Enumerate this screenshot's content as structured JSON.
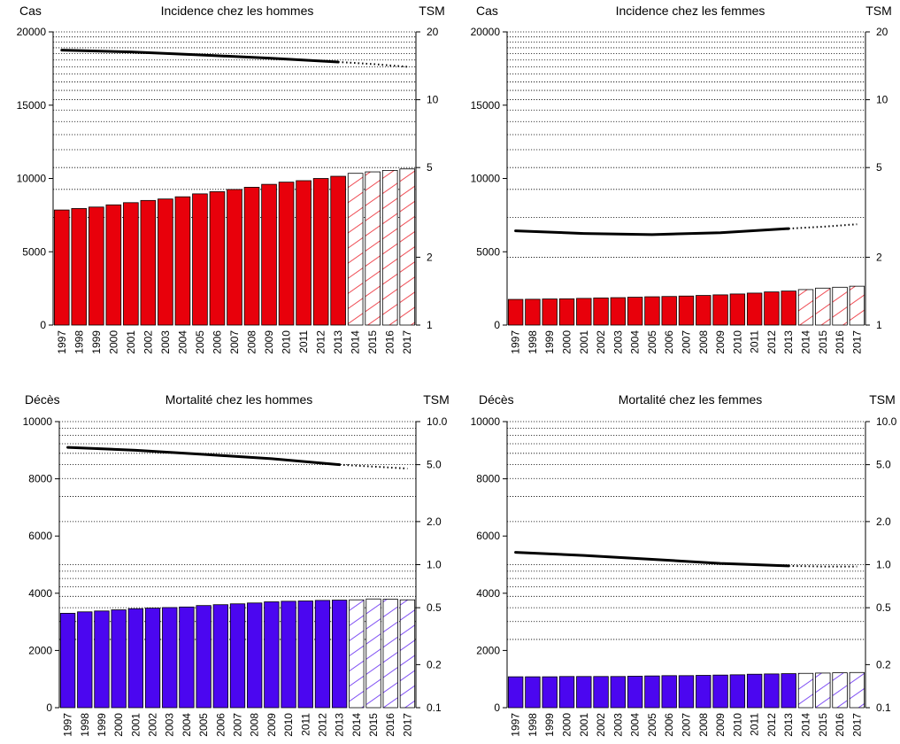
{
  "colors": {
    "incidence": "#e8000b",
    "mortality": "#4b06f0",
    "projection_fill": "#ffffff",
    "edge": "#000000",
    "trend": "#000000"
  },
  "chart_data": [
    {
      "id": "incidence-men",
      "type": "bar",
      "title": "Incidence chez les hommes",
      "ylabel": "Cas",
      "y2label": "TSM",
      "categories": [
        "1997",
        "1998",
        "1999",
        "2000",
        "2001",
        "2002",
        "2003",
        "2004",
        "2005",
        "2006",
        "2007",
        "2008",
        "2009",
        "2010",
        "2011",
        "2012",
        "2013",
        "2014",
        "2015",
        "2016",
        "2017"
      ],
      "values": [
        7850,
        7950,
        8050,
        8200,
        8350,
        8500,
        8600,
        8750,
        8950,
        9100,
        9250,
        9400,
        9600,
        9750,
        9850,
        10000,
        10150,
        10350,
        10450,
        10550,
        10650
      ],
      "projected_from": "2014",
      "ylim": [
        0,
        20000
      ],
      "yticks": [
        0,
        5000,
        10000,
        15000,
        20000
      ],
      "y2_scale": "log",
      "y2lim": [
        1,
        20
      ],
      "y2ticks": [
        1,
        2,
        5,
        10,
        20
      ],
      "y2_gridlines": [
        3,
        4,
        5,
        6,
        7,
        8,
        9,
        10,
        11,
        12,
        13,
        14,
        15,
        16,
        17,
        18,
        19
      ],
      "tsm": {
        "observed": [
          [
            1997,
            16.6
          ],
          [
            2001,
            16.3
          ],
          [
            2005,
            15.8
          ],
          [
            2009,
            15.3
          ],
          [
            2013,
            14.7
          ]
        ],
        "projected": [
          [
            2013,
            14.7
          ],
          [
            2015,
            14.4
          ],
          [
            2017,
            14.0
          ]
        ]
      }
    },
    {
      "id": "incidence-women",
      "type": "bar",
      "title": "Incidence chez les femmes",
      "ylabel": "Cas",
      "y2label": "TSM",
      "categories": [
        "1997",
        "1998",
        "1999",
        "2000",
        "2001",
        "2002",
        "2003",
        "2004",
        "2005",
        "2006",
        "2007",
        "2008",
        "2009",
        "2010",
        "2011",
        "2012",
        "2013",
        "2014",
        "2015",
        "2016",
        "2017"
      ],
      "values": [
        1750,
        1760,
        1780,
        1790,
        1820,
        1850,
        1870,
        1900,
        1930,
        1950,
        1980,
        2020,
        2060,
        2120,
        2180,
        2260,
        2320,
        2420,
        2520,
        2580,
        2650
      ],
      "projected_from": "2014",
      "ylim": [
        0,
        20000
      ],
      "yticks": [
        0,
        5000,
        10000,
        15000,
        20000
      ],
      "y2_scale": "log",
      "y2lim": [
        1,
        20
      ],
      "y2ticks": [
        1,
        2,
        5,
        10,
        20
      ],
      "y2_gridlines": [
        2,
        3,
        4,
        5,
        6,
        7,
        8,
        9,
        10,
        11,
        12,
        13,
        14,
        15,
        16,
        17,
        18,
        19
      ],
      "tsm": {
        "observed": [
          [
            1997,
            2.62
          ],
          [
            2001,
            2.55
          ],
          [
            2005,
            2.52
          ],
          [
            2009,
            2.57
          ],
          [
            2013,
            2.68
          ]
        ],
        "projected": [
          [
            2013,
            2.68
          ],
          [
            2015,
            2.73
          ],
          [
            2017,
            2.8
          ]
        ]
      }
    },
    {
      "id": "mortality-men",
      "type": "bar",
      "title": "Mortalité chez les hommes",
      "ylabel": "Décès",
      "y2label": "TSM",
      "categories": [
        "1997",
        "1998",
        "1999",
        "2000",
        "2001",
        "2002",
        "2003",
        "2004",
        "2005",
        "2006",
        "2007",
        "2008",
        "2009",
        "2010",
        "2011",
        "2012",
        "2013",
        "2014",
        "2015",
        "2016",
        "2017"
      ],
      "values": [
        3300,
        3350,
        3380,
        3420,
        3460,
        3480,
        3500,
        3520,
        3570,
        3600,
        3630,
        3660,
        3700,
        3720,
        3730,
        3750,
        3760,
        3770,
        3800,
        3790,
        3770
      ],
      "projected_from": "2014",
      "ylim": [
        0,
        10000
      ],
      "yticks": [
        0,
        2000,
        4000,
        6000,
        8000,
        10000
      ],
      "y2_scale": "log",
      "y2lim": [
        0.1,
        10
      ],
      "y2ticks": [
        0.1,
        0.2,
        0.5,
        1.0,
        2.0,
        5.0,
        10.0
      ],
      "y2_tick_labels": [
        "0.1",
        "0.2",
        "0.5",
        "1.0",
        "2.0",
        "5.0",
        "10.0"
      ],
      "y2_gridlines": [
        0.3,
        0.4,
        0.5,
        0.6,
        0.7,
        0.8,
        0.9,
        1,
        2,
        3,
        4,
        5,
        6,
        7,
        8,
        9
      ],
      "tsm": {
        "observed": [
          [
            1997,
            6.6
          ],
          [
            2001,
            6.3
          ],
          [
            2005,
            5.9
          ],
          [
            2009,
            5.5
          ],
          [
            2013,
            5.0
          ]
        ],
        "projected": [
          [
            2013,
            5.0
          ],
          [
            2015,
            4.85
          ],
          [
            2017,
            4.7
          ]
        ]
      }
    },
    {
      "id": "mortality-women",
      "type": "bar",
      "title": "Mortalité chez les femmes",
      "ylabel": "Décès",
      "y2label": "TSM",
      "categories": [
        "1997",
        "1998",
        "1999",
        "2000",
        "2001",
        "2002",
        "2003",
        "2004",
        "2005",
        "2006",
        "2007",
        "2008",
        "2009",
        "2010",
        "2011",
        "2012",
        "2013",
        "2014",
        "2015",
        "2016",
        "2017"
      ],
      "values": [
        1080,
        1080,
        1080,
        1090,
        1090,
        1090,
        1090,
        1100,
        1110,
        1120,
        1120,
        1130,
        1140,
        1150,
        1170,
        1180,
        1190,
        1200,
        1210,
        1220,
        1230
      ],
      "projected_from": "2014",
      "ylim": [
        0,
        10000
      ],
      "yticks": [
        0,
        2000,
        4000,
        6000,
        8000,
        10000
      ],
      "y2_scale": "log",
      "y2lim": [
        0.1,
        10
      ],
      "y2ticks": [
        0.1,
        0.2,
        0.5,
        1.0,
        2.0,
        5.0,
        10.0
      ],
      "y2_tick_labels": [
        "0.1",
        "0.2",
        "0.5",
        "1.0",
        "2.0",
        "5.0",
        "10.0"
      ],
      "y2_gridlines": [
        0.3,
        0.4,
        0.5,
        0.6,
        0.7,
        0.8,
        0.9,
        1,
        2,
        3,
        4,
        5,
        6,
        7,
        8,
        9
      ],
      "tsm": {
        "observed": [
          [
            1997,
            1.22
          ],
          [
            2001,
            1.16
          ],
          [
            2005,
            1.09
          ],
          [
            2009,
            1.02
          ],
          [
            2013,
            0.98
          ]
        ],
        "projected": [
          [
            2013,
            0.98
          ],
          [
            2015,
            0.97
          ],
          [
            2017,
            0.97
          ]
        ]
      }
    }
  ]
}
